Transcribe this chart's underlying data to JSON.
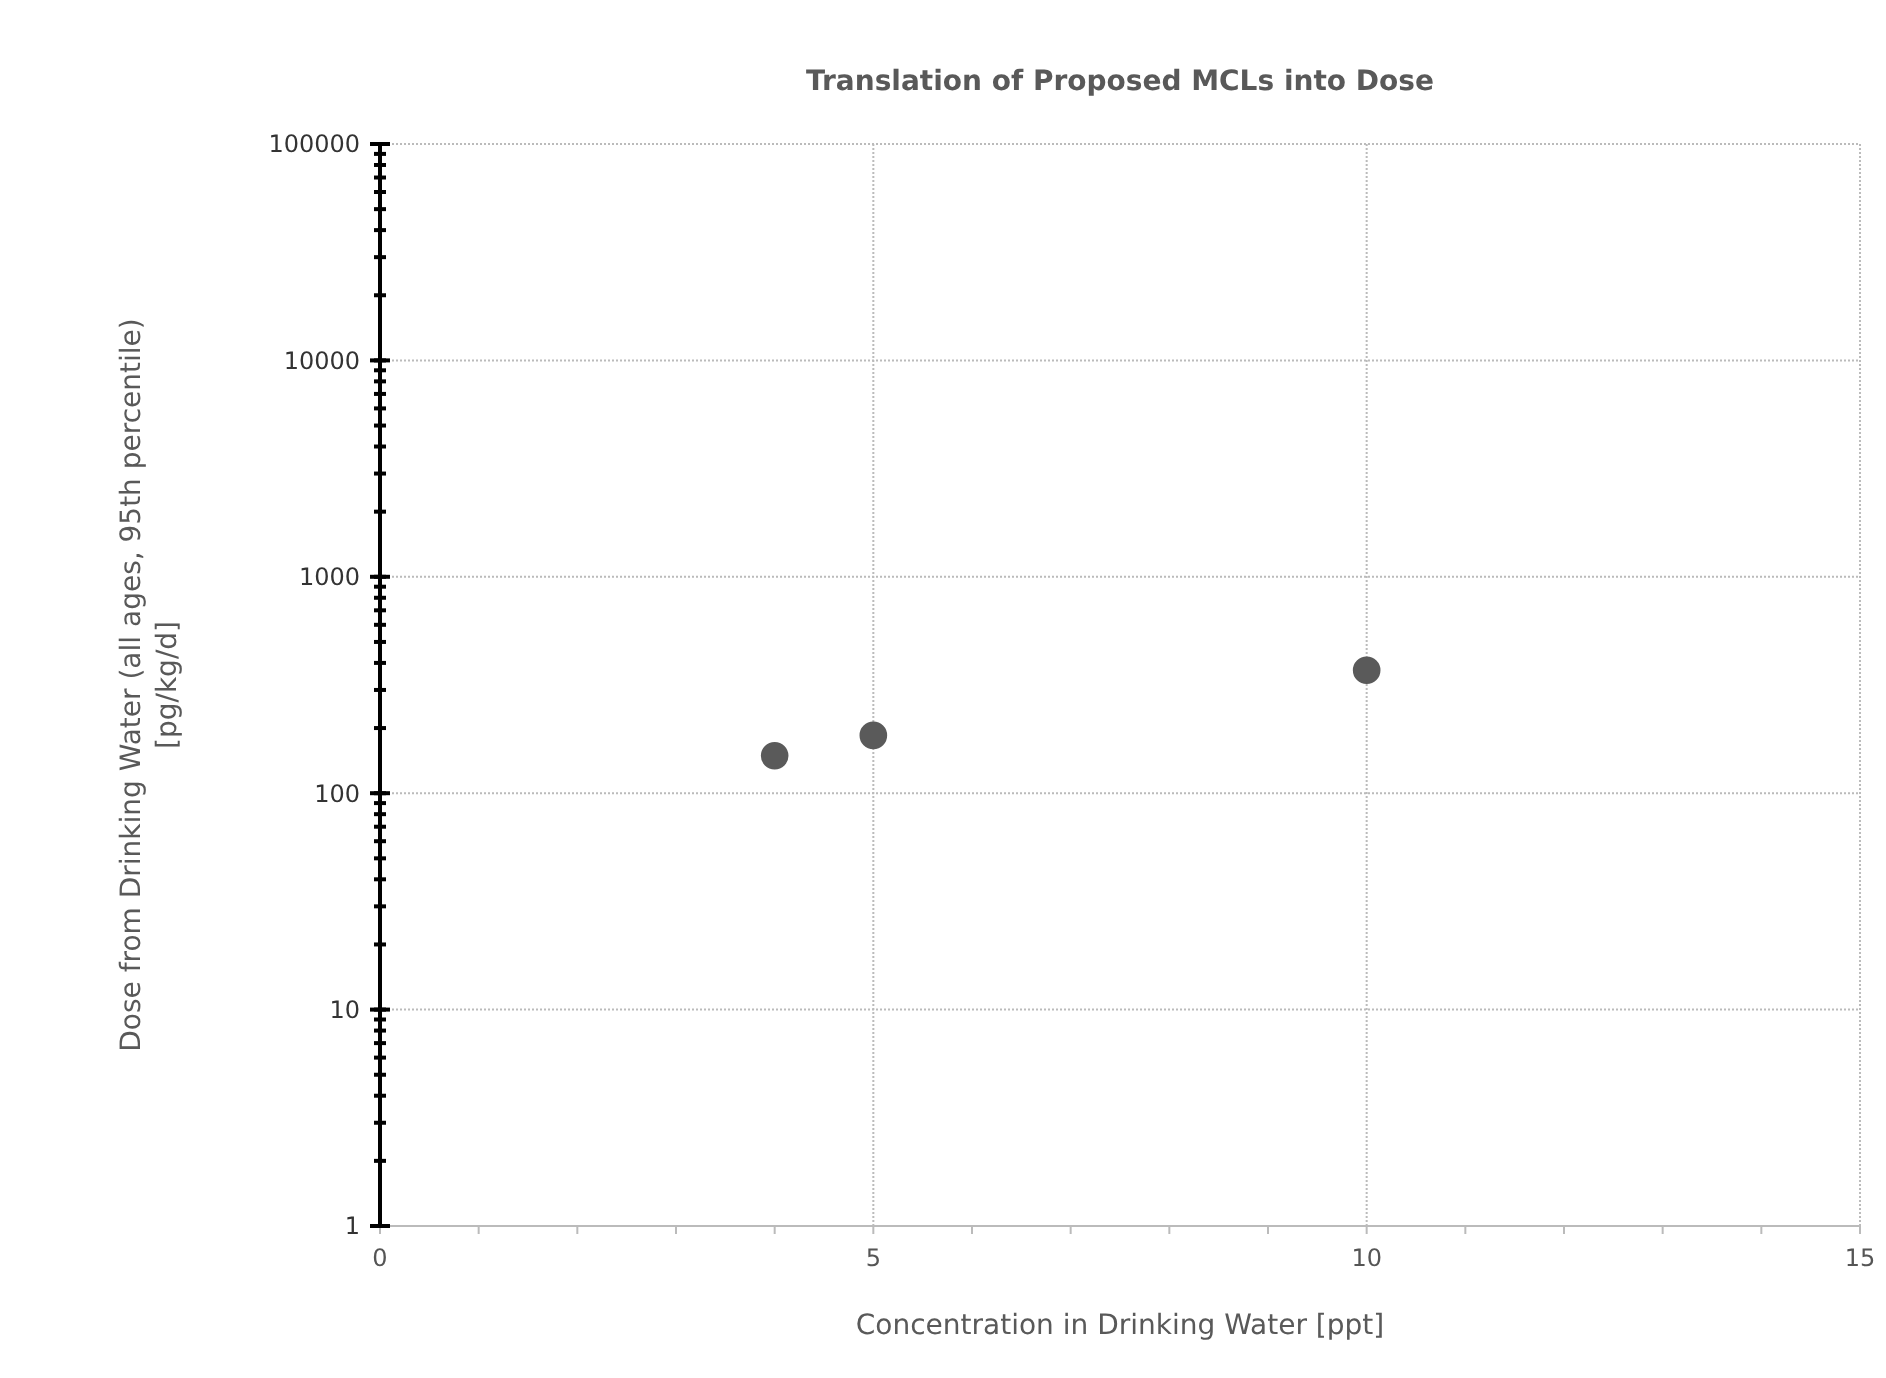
{
  "chart_data": {
    "type": "scatter",
    "title": "Translation of Proposed MCLs into Dose",
    "xlabel": "Concentration in Drinking Water [ppt]",
    "ylabel": "Dose from Drinking Water (all ages, 95th percentile) [pg/kg/d]",
    "x": [
      4,
      5,
      10
    ],
    "series": [
      {
        "color": "#5a5a5a",
        "values": [
          149,
          185,
          370
        ]
      }
    ],
    "xlim": [
      0,
      15
    ],
    "xticks": [
      0,
      5,
      10,
      15
    ],
    "ylim": [
      1,
      100000
    ],
    "yticks": [
      1,
      10,
      100,
      1000,
      10000,
      100000
    ],
    "log": "y",
    "grid": true,
    "marker": "circle"
  }
}
